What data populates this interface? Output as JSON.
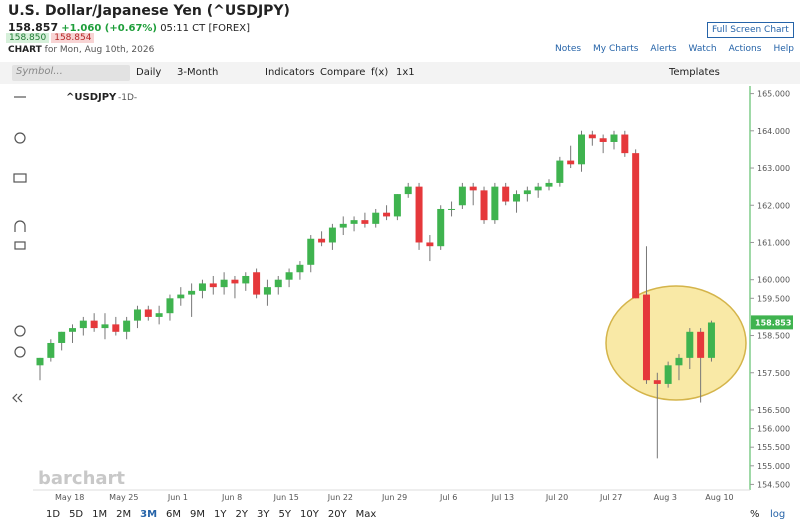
{
  "header": {
    "title": "U.S. Dollar/Japanese Yen (^USDJPY)",
    "last": "158.857",
    "change": "+1.060 (+0.67%)",
    "time": "05:11 CT [FOREX]",
    "bid": "158.850",
    "ask": "158.854",
    "chart_label": "CHART",
    "chart_date": "for Mon, Aug 10th, 2026",
    "fullscreen": "Full Screen Chart",
    "links": [
      "Notes",
      "My Charts",
      "Alerts",
      "Watch",
      "Actions",
      "Help"
    ]
  },
  "toolbar": {
    "symbol": "Symbol...",
    "interval": "Daily",
    "period": "3-Month",
    "indicators": "Indicators",
    "compare": "Compare",
    "fx": "f(x)",
    "layout": "1x1",
    "templates": "Templates"
  },
  "chart_data": {
    "type": "candlestick",
    "symbol": "^USDJPY",
    "interval_label": "-1D-",
    "watermark": "barchart",
    "categories": [
      null,
      null,
      "May 18",
      null,
      null,
      null,
      null,
      "May 25",
      null,
      null,
      null,
      null,
      "Jun 1",
      null,
      null,
      null,
      null,
      "Jun 8",
      null,
      null,
      null,
      null,
      "Jun 15",
      null,
      null,
      null,
      null,
      "Jun 22",
      null,
      null,
      null,
      null,
      "Jun 29",
      null,
      null,
      null,
      null,
      "Jul 6",
      null,
      null,
      null,
      null,
      "Jul 13",
      null,
      null,
      null,
      null,
      "Jul 20",
      null,
      null,
      null,
      null,
      "Jul 27",
      null,
      null,
      null,
      null,
      "Aug 3",
      null,
      null,
      null,
      null,
      "Aug 10"
    ],
    "open": [
      157.7,
      157.9,
      158.3,
      158.6,
      158.7,
      158.9,
      158.7,
      158.8,
      158.6,
      158.9,
      159.2,
      159.0,
      159.1,
      159.5,
      159.6,
      159.7,
      159.9,
      159.8,
      160.0,
      159.9,
      160.2,
      159.6,
      159.8,
      160.0,
      160.2,
      160.4,
      161.1,
      161.0,
      161.4,
      161.5,
      161.6,
      161.5,
      161.8,
      161.7,
      162.3,
      162.5,
      161.0,
      160.9,
      161.9,
      162.0,
      162.5,
      162.4,
      161.6,
      162.5,
      162.1,
      162.3,
      162.4,
      162.5,
      162.6,
      163.2,
      163.1,
      163.9,
      163.8,
      163.7,
      163.9,
      163.4,
      159.6,
      157.3,
      157.2,
      157.7,
      157.9,
      158.6,
      157.9
    ],
    "high": [
      157.9,
      158.4,
      158.6,
      158.8,
      159.0,
      159.1,
      159.1,
      159.0,
      159.0,
      159.3,
      159.3,
      159.3,
      159.6,
      159.8,
      159.9,
      160.0,
      160.1,
      160.2,
      160.1,
      160.2,
      160.3,
      160.0,
      160.1,
      160.3,
      160.5,
      161.2,
      161.3,
      161.5,
      161.7,
      161.7,
      161.8,
      161.9,
      162.0,
      162.3,
      162.6,
      162.6,
      161.2,
      162.0,
      162.1,
      162.6,
      162.6,
      162.5,
      162.6,
      162.6,
      162.4,
      162.5,
      162.6,
      162.7,
      163.3,
      163.6,
      164.0,
      164.0,
      163.9,
      164.0,
      164.0,
      163.5,
      160.9,
      157.5,
      157.8,
      158.0,
      158.7,
      158.7,
      158.9
    ],
    "low": [
      157.3,
      157.8,
      158.1,
      158.3,
      158.5,
      158.6,
      158.4,
      158.5,
      158.4,
      158.7,
      158.9,
      158.8,
      158.9,
      159.3,
      159.0,
      159.5,
      159.6,
      159.6,
      159.5,
      159.7,
      159.5,
      159.3,
      159.6,
      159.8,
      160.0,
      160.2,
      160.9,
      160.8,
      161.2,
      161.3,
      161.4,
      161.4,
      161.6,
      161.6,
      162.2,
      160.8,
      160.5,
      160.8,
      161.7,
      161.9,
      162.0,
      161.5,
      161.5,
      162.0,
      161.8,
      162.1,
      162.2,
      162.4,
      162.5,
      163.0,
      162.9,
      163.6,
      163.4,
      163.5,
      163.3,
      159.5,
      157.2,
      155.2,
      157.1,
      157.3,
      157.6,
      156.7,
      157.8
    ],
    "close": [
      157.9,
      158.3,
      158.6,
      158.7,
      158.9,
      158.7,
      158.8,
      158.6,
      158.9,
      159.2,
      159.0,
      159.1,
      159.5,
      159.6,
      159.7,
      159.9,
      159.8,
      160.0,
      159.9,
      160.1,
      159.6,
      159.8,
      160.0,
      160.2,
      160.4,
      161.1,
      161.0,
      161.4,
      161.5,
      161.6,
      161.5,
      161.8,
      161.7,
      162.3,
      162.5,
      161.0,
      160.9,
      161.9,
      161.9,
      162.5,
      162.4,
      161.6,
      162.5,
      162.1,
      162.3,
      162.4,
      162.5,
      162.6,
      163.2,
      163.1,
      163.9,
      163.8,
      163.7,
      163.9,
      163.4,
      159.5,
      157.3,
      157.2,
      157.7,
      157.9,
      158.6,
      157.9,
      158.85
    ],
    "up_color": "#3fb34f",
    "down_color": "#e5383b",
    "last_price": 158.853,
    "ylim": [
      154.35,
      165.15
    ],
    "yticks": [
      {
        "value": 165,
        "label": "165.000"
      },
      {
        "value": 164,
        "label": "164.000"
      },
      {
        "value": 163,
        "label": "163.000"
      },
      {
        "value": 162,
        "label": "162.000"
      },
      {
        "value": 161,
        "label": "161.000"
      },
      {
        "value": 160,
        "label": "160.000"
      },
      {
        "value": 159.5,
        "label": "159.500"
      },
      {
        "value": 158.5,
        "label": "158.500"
      },
      {
        "value": 157.5,
        "label": "157.500"
      },
      {
        "value": 156.5,
        "label": "156.500"
      },
      {
        "value": 156,
        "label": "156.000"
      },
      {
        "value": 155.5,
        "label": "155.500"
      },
      {
        "value": 155,
        "label": "155.000"
      },
      {
        "value": 154.5,
        "label": "154.500"
      }
    ]
  },
  "ranges": [
    "1D",
    "5D",
    "1M",
    "2M",
    "3M",
    "6M",
    "9M",
    "1Y",
    "2Y",
    "3Y",
    "5Y",
    "10Y",
    "20Y",
    "Max"
  ],
  "scale_options": [
    "%",
    "log"
  ]
}
